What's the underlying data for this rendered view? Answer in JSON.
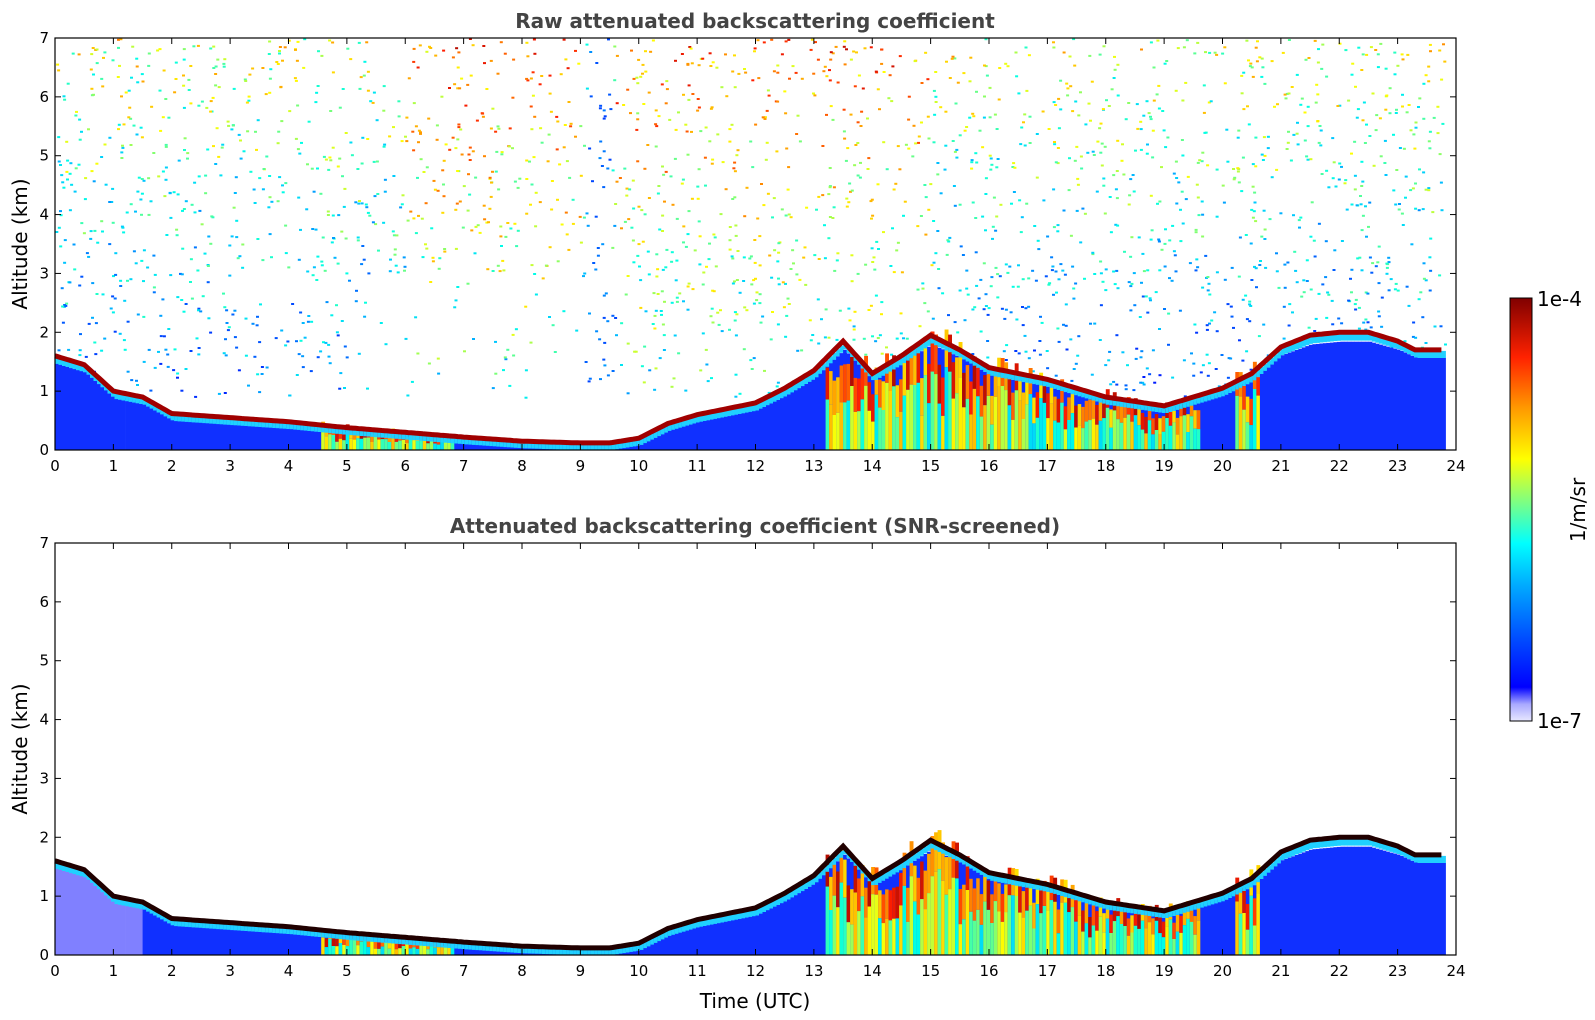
{
  "chart_data": [
    {
      "type": "heatmap",
      "title": "Raw attenuated backscattering coefficient",
      "xlabel": "",
      "ylabel": "Altitude (km)",
      "xlim": [
        0,
        24
      ],
      "ylim": [
        0,
        7
      ],
      "x_ticks": [
        "0",
        "1",
        "2",
        "3",
        "4",
        "5",
        "6",
        "7",
        "8",
        "9",
        "10",
        "11",
        "12",
        "13",
        "14",
        "15",
        "16",
        "17",
        "18",
        "19",
        "20",
        "21",
        "22",
        "23",
        "24"
      ],
      "y_ticks": [
        "0",
        "1",
        "2",
        "3",
        "4",
        "5",
        "6",
        "7"
      ],
      "grid": false,
      "noisy_background": true,
      "layer_top_km": [
        [
          0.0,
          1.6
        ],
        [
          0.5,
          1.45
        ],
        [
          1.0,
          1.0
        ],
        [
          1.5,
          0.9
        ],
        [
          2.0,
          0.62
        ],
        [
          3.0,
          0.55
        ],
        [
          4.0,
          0.48
        ],
        [
          5.0,
          0.38
        ],
        [
          6.0,
          0.3
        ],
        [
          7.0,
          0.22
        ],
        [
          8.0,
          0.15
        ],
        [
          9.0,
          0.12
        ],
        [
          9.5,
          0.12
        ],
        [
          10.0,
          0.2
        ],
        [
          10.5,
          0.45
        ],
        [
          11.0,
          0.6
        ],
        [
          12.0,
          0.8
        ],
        [
          12.5,
          1.05
        ],
        [
          13.0,
          1.35
        ],
        [
          13.5,
          1.85
        ],
        [
          14.0,
          1.3
        ],
        [
          14.5,
          1.6
        ],
        [
          15.0,
          1.95
        ],
        [
          15.5,
          1.7
        ],
        [
          16.0,
          1.4
        ],
        [
          17.0,
          1.2
        ],
        [
          18.0,
          0.9
        ],
        [
          19.0,
          0.75
        ],
        [
          19.5,
          0.9
        ],
        [
          20.0,
          1.05
        ],
        [
          20.5,
          1.3
        ],
        [
          21.0,
          1.75
        ],
        [
          21.5,
          1.95
        ],
        [
          22.0,
          2.0
        ],
        [
          22.5,
          2.0
        ],
        [
          23.0,
          1.85
        ],
        [
          23.3,
          1.7
        ],
        [
          23.8,
          1.7
        ]
      ]
    },
    {
      "type": "heatmap",
      "title": "Attenuated backscattering coefficient (SNR-screened)",
      "xlabel": "Time (UTC)",
      "ylabel": "Altitude (km)",
      "xlim": [
        0,
        24
      ],
      "ylim": [
        0,
        7
      ],
      "x_ticks": [
        "0",
        "1",
        "2",
        "3",
        "4",
        "5",
        "6",
        "7",
        "8",
        "9",
        "10",
        "11",
        "12",
        "13",
        "14",
        "15",
        "16",
        "17",
        "18",
        "19",
        "20",
        "21",
        "22",
        "23",
        "24"
      ],
      "y_ticks": [
        "0",
        "1",
        "2",
        "3",
        "4",
        "5",
        "6",
        "7"
      ],
      "grid": false,
      "noisy_background": false,
      "layer_top_km": [
        [
          0.0,
          1.6
        ],
        [
          0.5,
          1.45
        ],
        [
          1.0,
          1.0
        ],
        [
          1.5,
          0.9
        ],
        [
          2.0,
          0.62
        ],
        [
          3.0,
          0.55
        ],
        [
          4.0,
          0.48
        ],
        [
          5.0,
          0.38
        ],
        [
          6.0,
          0.3
        ],
        [
          7.0,
          0.22
        ],
        [
          8.0,
          0.15
        ],
        [
          9.0,
          0.12
        ],
        [
          9.5,
          0.12
        ],
        [
          10.0,
          0.2
        ],
        [
          10.5,
          0.45
        ],
        [
          11.0,
          0.6
        ],
        [
          12.0,
          0.8
        ],
        [
          12.5,
          1.05
        ],
        [
          13.0,
          1.35
        ],
        [
          13.5,
          1.85
        ],
        [
          14.0,
          1.3
        ],
        [
          14.5,
          1.6
        ],
        [
          15.0,
          1.95
        ],
        [
          15.5,
          1.7
        ],
        [
          16.0,
          1.4
        ],
        [
          17.0,
          1.2
        ],
        [
          18.0,
          0.9
        ],
        [
          19.0,
          0.75
        ],
        [
          19.5,
          0.9
        ],
        [
          20.0,
          1.05
        ],
        [
          20.5,
          1.3
        ],
        [
          21.0,
          1.75
        ],
        [
          21.5,
          1.95
        ],
        [
          22.0,
          2.0
        ],
        [
          22.5,
          2.0
        ],
        [
          23.0,
          1.85
        ],
        [
          23.3,
          1.7
        ],
        [
          23.8,
          1.7
        ]
      ]
    }
  ],
  "colorbar": {
    "max_label": "1e-4",
    "min_label": "1e-7",
    "unit_label": "1/m/sr",
    "colors": [
      "#000080",
      "#0000ff",
      "#0080ff",
      "#00ffff",
      "#80ff80",
      "#ffff00",
      "#ff8000",
      "#ff0000",
      "#800000"
    ],
    "light_bottom_colors": [
      "#e8e8ff",
      "#c8c8ff",
      "#a8a8ff",
      "#8080ff"
    ]
  }
}
